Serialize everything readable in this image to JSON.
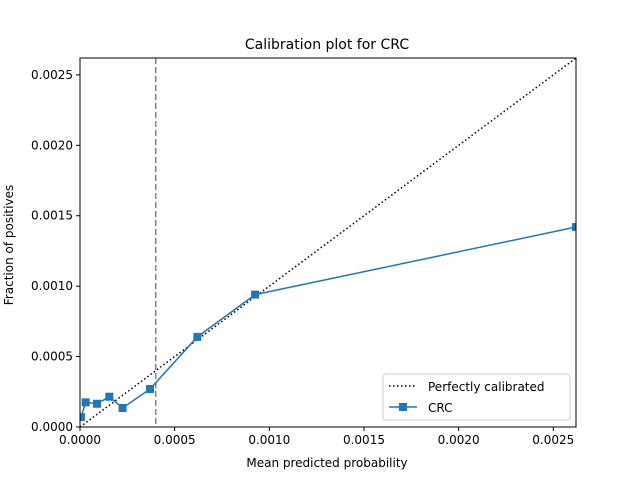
{
  "chart_data": {
    "type": "line",
    "title": "Calibration plot for CRC",
    "xlabel": "Mean predicted probability",
    "ylabel": "Fraction of positives",
    "xlim": [
      0,
      0.00262
    ],
    "ylim": [
      0,
      0.00262
    ],
    "x_ticks": [
      "0.0000",
      "0.0005",
      "0.0010",
      "0.0015",
      "0.0020",
      "0.0025"
    ],
    "y_ticks": [
      "0.0000",
      "0.0005",
      "0.0010",
      "0.0015",
      "0.0020",
      "0.0025"
    ],
    "grid": false,
    "legend_placement": "lower-right",
    "reference_line": {
      "name": "Perfectly calibrated",
      "x": [
        0,
        0.00262
      ],
      "y": [
        0,
        0.00262
      ],
      "color": "#000000",
      "style": "dotted"
    },
    "threshold_line": {
      "x": 0.0004,
      "color": "#808080",
      "style": "dashed"
    },
    "series": [
      {
        "name": "CRC",
        "color": "#1f77b4",
        "marker": "square",
        "x": [
          5e-06,
          3e-05,
          9e-05,
          0.000155,
          0.000225,
          0.00037,
          0.00062,
          0.000925,
          0.00262
        ],
        "y": [
          7e-05,
          0.000175,
          0.000165,
          0.000215,
          0.000135,
          0.00027,
          0.00064,
          0.00094,
          0.00142
        ]
      }
    ]
  }
}
